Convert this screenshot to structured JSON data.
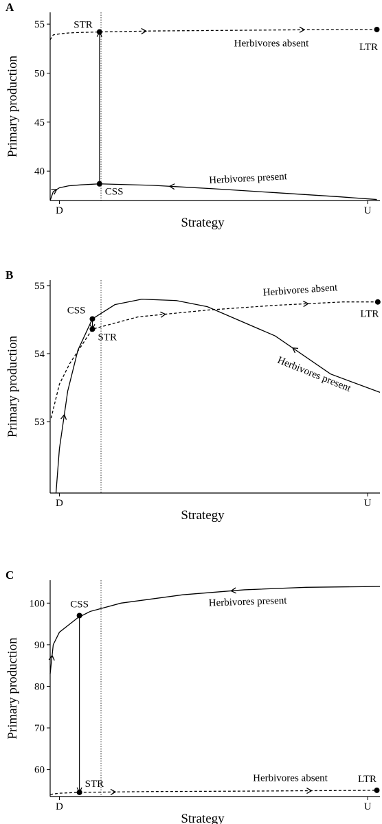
{
  "chart_data": [
    {
      "type": "line",
      "panel": "A",
      "ylabel": "Primary production",
      "xlabel": "Strategy",
      "xlim": [
        -0.03,
        1.04
      ],
      "ylim": [
        37.0,
        56.2
      ],
      "xticks": [
        {
          "value": 0,
          "label": "D"
        },
        {
          "value": 1,
          "label": "U"
        }
      ],
      "yticks": [
        40,
        45,
        50,
        55
      ],
      "reference_x": 0.135,
      "series": [
        {
          "name": "Herbivores absent",
          "style": "dashed",
          "color": "#000000",
          "x": [
            -0.03,
            -0.02,
            0,
            0.03,
            0.07,
            0.13,
            0.3,
            0.5,
            0.7,
            0.9,
            1.03
          ],
          "values": [
            53.4,
            53.9,
            54.0,
            54.1,
            54.15,
            54.2,
            54.3,
            54.35,
            54.4,
            54.45,
            54.45
          ]
        },
        {
          "name": "Herbivores present",
          "style": "solid",
          "color": "#000000",
          "x": [
            -0.03,
            -0.02,
            0,
            0.03,
            0.07,
            0.13,
            0.3,
            0.5,
            0.7,
            0.9,
            1.03
          ],
          "values": [
            37.0,
            37.9,
            38.3,
            38.5,
            38.6,
            38.7,
            38.55,
            38.2,
            37.8,
            37.4,
            37.1
          ]
        }
      ],
      "points": [
        {
          "label": "STR",
          "x": 0.13,
          "y": 54.2
        },
        {
          "label": "CSS",
          "x": 0.13,
          "y": 38.7
        },
        {
          "label": "LTR",
          "x": 1.03,
          "y": 54.45
        }
      ]
    },
    {
      "type": "line",
      "panel": "B",
      "ylabel": "Primary production",
      "xlabel": "Strategy",
      "xlim": [
        -0.03,
        1.04
      ],
      "ylim": [
        51.95,
        55.08
      ],
      "xticks": [
        {
          "value": 0,
          "label": "D"
        },
        {
          "value": 1,
          "label": "U"
        }
      ],
      "yticks": [
        53,
        54,
        55
      ],
      "reference_x": 0.135,
      "series": [
        {
          "name": "Herbivores absent",
          "style": "dashed",
          "color": "#000000",
          "x": [
            -0.027,
            0,
            0.033,
            0.107,
            0.255,
            0.48,
            0.7,
            0.92,
            1.033
          ],
          "values": [
            53.05,
            53.55,
            53.85,
            54.36,
            54.54,
            54.64,
            54.71,
            54.76,
            54.76
          ]
        },
        {
          "name": "Herbivores present",
          "style": "solid",
          "color": "#000000",
          "x": [
            -0.011,
            0.0,
            0.027,
            0.06,
            0.107,
            0.18,
            0.267,
            0.38,
            0.48,
            0.7,
            0.88,
            1.04
          ],
          "values": [
            51.95,
            52.6,
            53.45,
            54.05,
            54.51,
            54.72,
            54.8,
            54.78,
            54.69,
            54.26,
            53.7,
            53.43
          ]
        }
      ],
      "points": [
        {
          "label": "STR",
          "x": 0.107,
          "y": 54.36
        },
        {
          "label": "CSS",
          "x": 0.107,
          "y": 54.51
        },
        {
          "label": "LTR",
          "x": 1.033,
          "y": 54.76
        }
      ]
    },
    {
      "type": "line",
      "panel": "C",
      "ylabel": "Primary production",
      "xlabel": "Strategy",
      "xlim": [
        -0.03,
        1.04
      ],
      "ylim": [
        53.5,
        105.5
      ],
      "xticks": [
        {
          "value": 0,
          "label": "D"
        },
        {
          "value": 1,
          "label": "U"
        }
      ],
      "yticks": [
        60,
        70,
        80,
        90,
        100
      ],
      "reference_x": 0.135,
      "series": [
        {
          "name": "Herbivores absent",
          "style": "dashed",
          "color": "#000000",
          "x": [
            -0.03,
            0,
            0.065,
            0.3,
            0.6,
            1.03
          ],
          "values": [
            54.0,
            54.3,
            54.5,
            54.7,
            54.8,
            55.0
          ]
        },
        {
          "name": "Herbivores present",
          "style": "solid",
          "color": "#000000",
          "x": [
            -0.03,
            -0.02,
            0,
            0.06,
            0.1,
            0.2,
            0.4,
            0.6,
            0.8,
            1.04
          ],
          "values": [
            83,
            90,
            93,
            96.5,
            98,
            100,
            102,
            103.2,
            103.8,
            104
          ]
        }
      ],
      "points": [
        {
          "label": "STR",
          "x": 0.065,
          "y": 54.5
        },
        {
          "label": "CSS",
          "x": 0.065,
          "y": 97
        },
        {
          "label": "LTR",
          "x": 1.03,
          "y": 55.0
        }
      ]
    }
  ]
}
